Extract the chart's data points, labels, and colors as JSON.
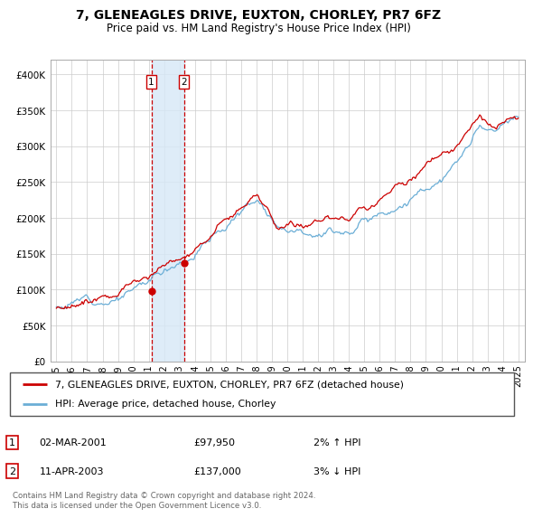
{
  "title": "7, GLENEAGLES DRIVE, EUXTON, CHORLEY, PR7 6FZ",
  "subtitle": "Price paid vs. HM Land Registry's House Price Index (HPI)",
  "legend_line1": "7, GLENEAGLES DRIVE, EUXTON, CHORLEY, PR7 6FZ (detached house)",
  "legend_line2": "HPI: Average price, detached house, Chorley",
  "transaction1_date": "02-MAR-2001",
  "transaction1_price": "£97,950",
  "transaction1_hpi": "2% ↑ HPI",
  "transaction2_date": "11-APR-2003",
  "transaction2_price": "£137,000",
  "transaction2_hpi": "3% ↓ HPI",
  "footer": "Contains HM Land Registry data © Crown copyright and database right 2024.\nThis data is licensed under the Open Government Licence v3.0.",
  "hpi_color": "#6baed6",
  "price_color": "#cc0000",
  "vline_color": "#cc0000",
  "vshade_color": "#d6e8f7",
  "ylim": [
    0,
    420000
  ],
  "yticks": [
    0,
    50000,
    100000,
    150000,
    200000,
    250000,
    300000,
    350000,
    400000
  ],
  "ytick_labels": [
    "£0",
    "£50K",
    "£100K",
    "£150K",
    "£200K",
    "£250K",
    "£300K",
    "£350K",
    "£400K"
  ],
  "t1_year": 2001.17,
  "t1_price": 97950,
  "t2_year": 2003.28,
  "t2_price": 137000
}
